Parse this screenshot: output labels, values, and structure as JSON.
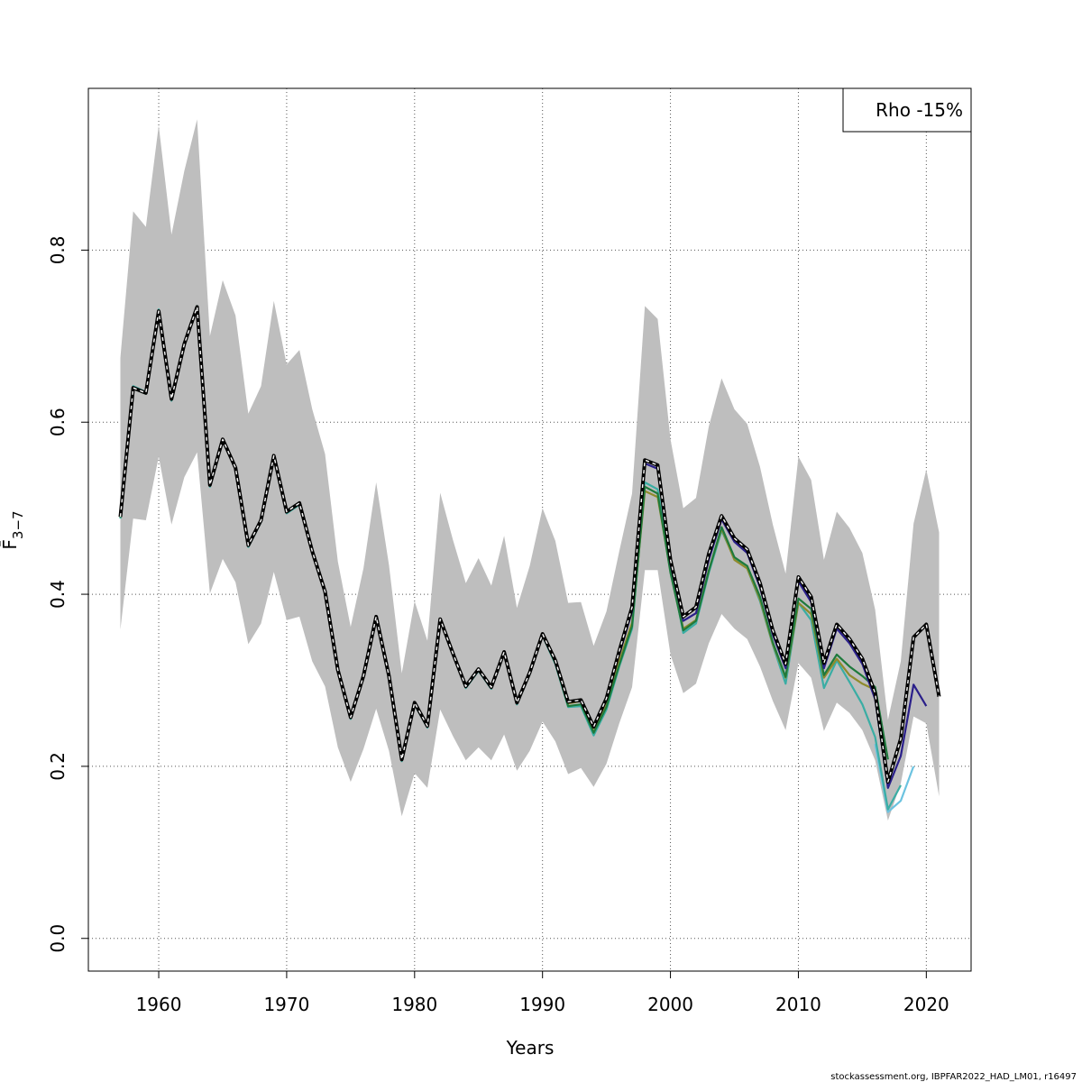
{
  "chart_data": {
    "type": "line",
    "title": "",
    "xlabel": "Years",
    "ylabel": "F̄",
    "ylabel_subscript": "3−7",
    "xlim": [
      1954.5,
      2023.5
    ],
    "ylim": [
      -0.038,
      0.988
    ],
    "xticks": [
      1960,
      1970,
      1980,
      1990,
      2000,
      2010,
      2020
    ],
    "yticks": [
      0.0,
      0.2,
      0.4,
      0.6,
      0.8
    ],
    "xtick_labels": [
      "1960",
      "1970",
      "1980",
      "1990",
      "2000",
      "2010",
      "2020"
    ],
    "ytick_labels": [
      "0.0",
      "0.2",
      "0.4",
      "0.6",
      "0.8"
    ],
    "grid": true,
    "legend": {
      "position": "top-right",
      "text": "Rho -15%"
    },
    "colors": {
      "band": "#bebebe",
      "base": "#000000",
      "peel1": "#2a1f8a",
      "peel2": "#1e7a3c",
      "peel3": "#8f8b2c",
      "peel4": "#3aada4",
      "peel5": "#6cc3e0"
    },
    "confidence_band": {
      "x": [
        1957,
        1958,
        1959,
        1960,
        1961,
        1962,
        1963,
        1964,
        1965,
        1966,
        1967,
        1968,
        1969,
        1970,
        1971,
        1972,
        1973,
        1974,
        1975,
        1976,
        1977,
        1978,
        1979,
        1980,
        1981,
        1982,
        1983,
        1984,
        1985,
        1986,
        1987,
        1988,
        1989,
        1990,
        1991,
        1992,
        1993,
        1994,
        1995,
        1996,
        1997,
        1998,
        1999,
        2000,
        2001,
        2002,
        2003,
        2004,
        2005,
        2006,
        2007,
        2008,
        2009,
        2010,
        2011,
        2012,
        2013,
        2014,
        2015,
        2016,
        2017,
        2018,
        2019,
        2020,
        2021
      ],
      "upper": [
        0.675,
        0.845,
        0.827,
        0.945,
        0.818,
        0.892,
        0.952,
        0.7,
        0.765,
        0.724,
        0.61,
        0.642,
        0.741,
        0.667,
        0.684,
        0.615,
        0.563,
        0.438,
        0.362,
        0.43,
        0.53,
        0.434,
        0.308,
        0.392,
        0.346,
        0.518,
        0.463,
        0.413,
        0.442,
        0.41,
        0.468,
        0.384,
        0.433,
        0.5,
        0.462,
        0.39,
        0.391,
        0.34,
        0.38,
        0.45,
        0.517,
        0.735,
        0.72,
        0.58,
        0.5,
        0.512,
        0.595,
        0.651,
        0.615,
        0.598,
        0.548,
        0.481,
        0.424,
        0.56,
        0.533,
        0.44,
        0.496,
        0.477,
        0.448,
        0.382,
        0.254,
        0.322,
        0.482,
        0.545,
        0.472
      ],
      "lower": [
        0.359,
        0.488,
        0.486,
        0.56,
        0.481,
        0.536,
        0.565,
        0.401,
        0.441,
        0.414,
        0.342,
        0.366,
        0.426,
        0.37,
        0.374,
        0.322,
        0.293,
        0.222,
        0.182,
        0.22,
        0.267,
        0.218,
        0.142,
        0.192,
        0.175,
        0.266,
        0.235,
        0.207,
        0.222,
        0.207,
        0.237,
        0.195,
        0.218,
        0.252,
        0.229,
        0.191,
        0.198,
        0.176,
        0.203,
        0.25,
        0.292,
        0.428,
        0.428,
        0.33,
        0.285,
        0.296,
        0.343,
        0.377,
        0.36,
        0.348,
        0.316,
        0.276,
        0.242,
        0.32,
        0.303,
        0.241,
        0.274,
        0.262,
        0.242,
        0.207,
        0.137,
        0.18,
        0.258,
        0.25,
        0.165
      ]
    },
    "series": [
      {
        "x": [
          1957,
          1958,
          1959,
          1960,
          1961,
          1962,
          1963,
          1964,
          1965,
          1966,
          1967,
          1968,
          1969,
          1970,
          1971,
          1972,
          1973,
          1974,
          1975,
          1976,
          1977,
          1978,
          1979,
          1980,
          1981,
          1982,
          1983,
          1984,
          1985,
          1986,
          1987,
          1988,
          1989,
          1990,
          1991,
          1992,
          1993,
          1994,
          1995,
          1996,
          1997,
          1998,
          1999,
          2000,
          2001,
          2002,
          2003,
          2004,
          2005,
          2006,
          2007,
          2008,
          2009,
          2010,
          2011,
          2012,
          2013,
          2014,
          2015,
          2016,
          2017,
          2018,
          2019,
          2020,
          2021
        ],
        "values": [
          0.49,
          0.64,
          0.634,
          0.729,
          0.627,
          0.691,
          0.734,
          0.527,
          0.58,
          0.547,
          0.457,
          0.486,
          0.561,
          0.496,
          0.506,
          0.45,
          0.403,
          0.312,
          0.257,
          0.305,
          0.374,
          0.305,
          0.208,
          0.274,
          0.247,
          0.371,
          0.331,
          0.293,
          0.313,
          0.292,
          0.333,
          0.274,
          0.309,
          0.354,
          0.323,
          0.275,
          0.277,
          0.246,
          0.279,
          0.334,
          0.385,
          0.556,
          0.55,
          0.44,
          0.374,
          0.385,
          0.447,
          0.491,
          0.465,
          0.452,
          0.413,
          0.358,
          0.319,
          0.42,
          0.397,
          0.32,
          0.365,
          0.348,
          0.325,
          0.285,
          0.182,
          0.232,
          0.35,
          0.365,
          0.281
        ],
        "color": "#000000",
        "dashed": true
      },
      {
        "x": [
          1996,
          1997,
          1998,
          1999,
          2000,
          2001,
          2002,
          2003,
          2004,
          2005,
          2006,
          2007,
          2008,
          2009,
          2010,
          2011,
          2012,
          2013,
          2014,
          2015,
          2016,
          2017,
          2018,
          2019,
          2020
        ],
        "values": [
          0.33,
          0.38,
          0.552,
          0.546,
          0.435,
          0.369,
          0.378,
          0.44,
          0.487,
          0.461,
          0.448,
          0.408,
          0.353,
          0.314,
          0.415,
          0.391,
          0.314,
          0.36,
          0.343,
          0.319,
          0.278,
          0.175,
          0.212,
          0.295,
          0.27
        ],
        "color": "#2a1f8a"
      },
      {
        "x": [
          1957,
          1958,
          1959,
          1960,
          1961,
          1962,
          1963,
          1964,
          1965,
          1966,
          1967,
          1968,
          1969,
          1970,
          1971,
          1972,
          1973,
          1974,
          1975,
          1976,
          1977,
          1978,
          1979,
          1980,
          1981,
          1982,
          1983,
          1984,
          1985,
          1986,
          1987,
          1988,
          1989,
          1990,
          1991,
          1992,
          1993,
          1994,
          1995,
          1996,
          1997,
          1998,
          1999,
          2000,
          2001,
          2002,
          2003,
          2004,
          2005,
          2006,
          2007,
          2008,
          2009,
          2010,
          2011,
          2012,
          2013,
          2014,
          2015,
          2016,
          2017
        ],
        "values": [
          0.489,
          0.639,
          0.633,
          0.728,
          0.626,
          0.69,
          0.733,
          0.526,
          0.579,
          0.546,
          0.457,
          0.485,
          0.56,
          0.495,
          0.505,
          0.449,
          0.402,
          0.311,
          0.256,
          0.304,
          0.372,
          0.303,
          0.207,
          0.273,
          0.246,
          0.37,
          0.33,
          0.292,
          0.312,
          0.291,
          0.332,
          0.273,
          0.308,
          0.353,
          0.32,
          0.27,
          0.272,
          0.239,
          0.269,
          0.318,
          0.363,
          0.525,
          0.517,
          0.425,
          0.358,
          0.369,
          0.427,
          0.478,
          0.443,
          0.433,
          0.397,
          0.344,
          0.304,
          0.395,
          0.383,
          0.306,
          0.33,
          0.316,
          0.305,
          0.292,
          0.208
        ],
        "color": "#1e7a3c"
      },
      {
        "x": [
          1957,
          1958,
          1959,
          1960,
          1961,
          1962,
          1963,
          1964,
          1965,
          1966,
          1967,
          1968,
          1969,
          1970,
          1971,
          1972,
          1973,
          1974,
          1975,
          1976,
          1977,
          1978,
          1979,
          1980,
          1981,
          1982,
          1983,
          1984,
          1985,
          1986,
          1987,
          1988,
          1989,
          1990,
          1991,
          1992,
          1993,
          1994,
          1995,
          1996,
          1997,
          1998,
          1999,
          2000,
          2001,
          2002,
          2003,
          2004,
          2005,
          2006,
          2007,
          2008,
          2009,
          2010,
          2011,
          2012,
          2013,
          2014,
          2015,
          2016
        ],
        "values": [
          0.49,
          0.64,
          0.634,
          0.729,
          0.627,
          0.691,
          0.734,
          0.527,
          0.58,
          0.547,
          0.458,
          0.486,
          0.561,
          0.496,
          0.506,
          0.45,
          0.403,
          0.312,
          0.257,
          0.305,
          0.373,
          0.304,
          0.208,
          0.274,
          0.247,
          0.371,
          0.331,
          0.293,
          0.313,
          0.292,
          0.333,
          0.274,
          0.309,
          0.354,
          0.322,
          0.273,
          0.276,
          0.24,
          0.271,
          0.322,
          0.367,
          0.52,
          0.513,
          0.427,
          0.36,
          0.37,
          0.428,
          0.476,
          0.44,
          0.43,
          0.394,
          0.342,
          0.303,
          0.39,
          0.377,
          0.303,
          0.325,
          0.306,
          0.296,
          0.289
        ],
        "color": "#8f8b2c"
      },
      {
        "x": [
          1957,
          1958,
          1959,
          1960,
          1961,
          1962,
          1963,
          1964,
          1965,
          1966,
          1967,
          1968,
          1969,
          1970,
          1971,
          1972,
          1973,
          1974,
          1975,
          1976,
          1977,
          1978,
          1979,
          1980,
          1981,
          1982,
          1983,
          1984,
          1985,
          1986,
          1987,
          1988,
          1989,
          1990,
          1991,
          1992,
          1993,
          1994,
          1995,
          1996,
          1997,
          1998,
          1999,
          2000,
          2001,
          2002,
          2003,
          2004,
          2005,
          2006,
          2007,
          2008,
          2009,
          2010,
          2011,
          2012,
          2013,
          2014,
          2015,
          2016,
          2017,
          2018
        ],
        "values": [
          0.488,
          0.642,
          0.635,
          0.731,
          0.625,
          0.69,
          0.735,
          0.525,
          0.578,
          0.546,
          0.455,
          0.484,
          0.559,
          0.494,
          0.504,
          0.448,
          0.401,
          0.31,
          0.255,
          0.303,
          0.371,
          0.302,
          0.206,
          0.272,
          0.245,
          0.369,
          0.329,
          0.291,
          0.311,
          0.29,
          0.331,
          0.272,
          0.307,
          0.352,
          0.319,
          0.269,
          0.27,
          0.236,
          0.266,
          0.316,
          0.36,
          0.53,
          0.522,
          0.432,
          0.355,
          0.366,
          0.425,
          0.474,
          0.442,
          0.43,
          0.392,
          0.341,
          0.296,
          0.39,
          0.37,
          0.291,
          0.323,
          0.298,
          0.272,
          0.234,
          0.15,
          0.178
        ],
        "color": "#3aada4"
      },
      {
        "x": [
          2016,
          2017,
          2018,
          2019
        ],
        "values": [
          0.226,
          0.147,
          0.16,
          0.2
        ],
        "color": "#6cc3e0"
      }
    ]
  },
  "footer": "stockassessment.org, IBPFAR2022_HAD_LM01, r16497"
}
